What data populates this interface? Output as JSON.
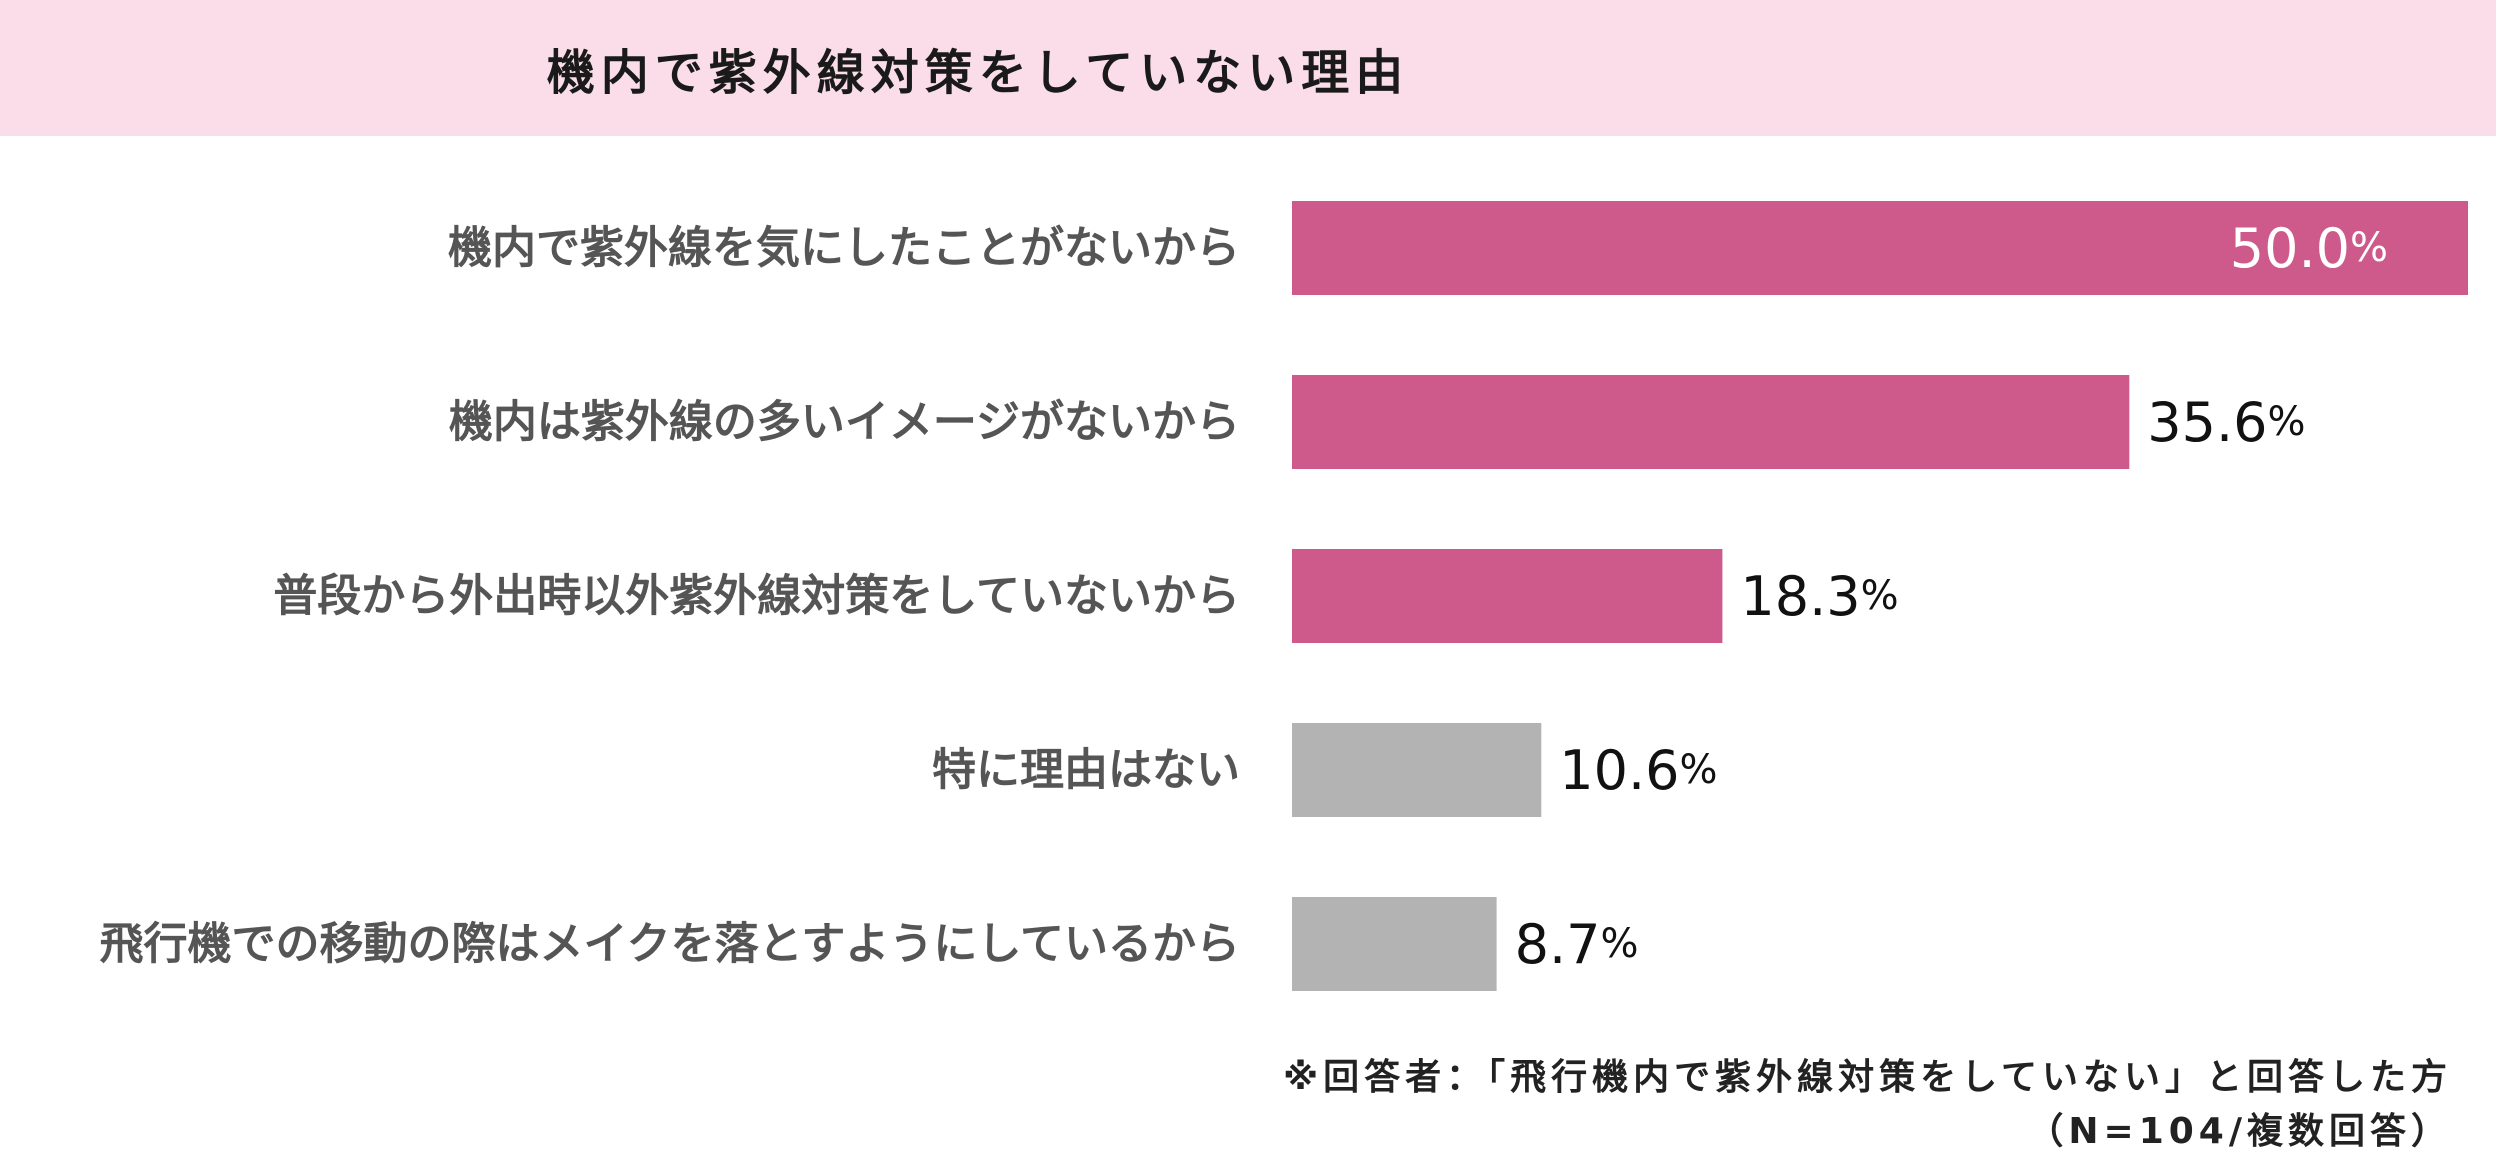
{
  "chart_data": {
    "type": "bar",
    "orientation": "horizontal",
    "title": "機内で紫外線対策をしていない理由",
    "categories": [
      "機内で紫外線を気にしたことがないから",
      "機内は紫外線の多いイメージがないから",
      "普段から外出時以外紫外線対策をしていないから",
      "特に理由はない",
      "飛行機での移動の際はメイクを落とすようにしているから"
    ],
    "values": [
      50.0,
      35.6,
      18.3,
      10.6,
      8.7
    ],
    "value_labels": [
      {
        "num": "50.0",
        "unit": "%"
      },
      {
        "num": "35.6",
        "unit": "%"
      },
      {
        "num": "18.3",
        "unit": "%"
      },
      {
        "num": "10.6",
        "unit": "%"
      },
      {
        "num": "8.7",
        "unit": "%"
      }
    ],
    "bar_colors": [
      "#cd5a8a",
      "#cd5a8a",
      "#cd5a8a",
      "#b3b3b3",
      "#b3b3b3"
    ],
    "label_colors": [
      "#ffffff",
      "#111111",
      "#111111",
      "#111111",
      "#111111"
    ],
    "xlim": [
      0,
      50
    ],
    "grid": false,
    "legend": "none"
  },
  "notes": {
    "respondents": "※回答者：「飛行機内で紫外線対策をしていない」と回答した方",
    "sample": "（N=104/複数回答）"
  }
}
